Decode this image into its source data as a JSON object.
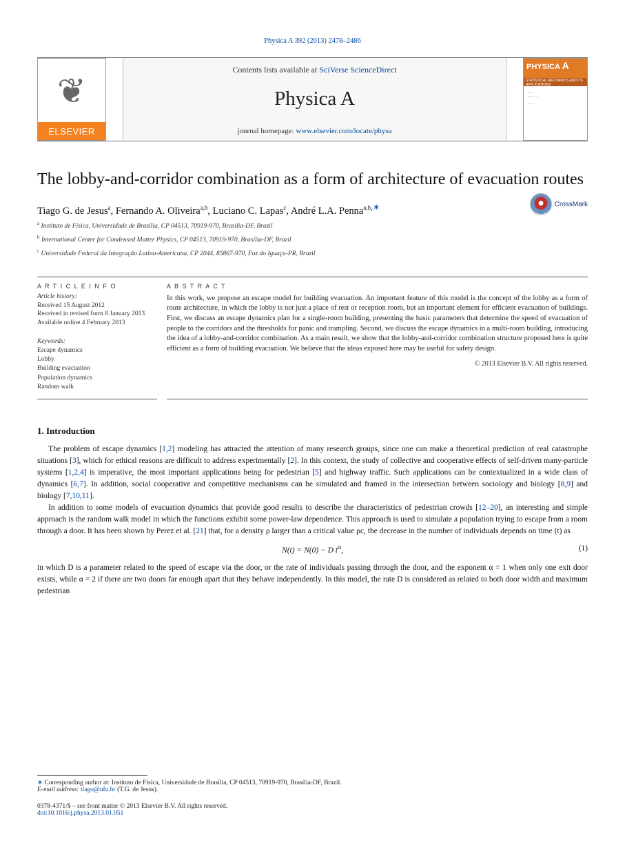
{
  "running_head": "Physica A 392 (2013) 2478–2486",
  "banner": {
    "contents_prefix": "Contents lists available at ",
    "contents_link": "SciVerse ScienceDirect",
    "journal_title": "Physica A",
    "homepage_prefix": "journal homepage: ",
    "homepage_link": "www.elsevier.com/locate/physa",
    "publisher_brand": "ELSEVIER",
    "cover_brand": "PHYSICA",
    "cover_letter": "A",
    "cover_sub": "STATISTICAL MECHANICS AND ITS APPLICATIONS"
  },
  "crossmark_label": "CrossMark",
  "paper_title": "The lobby-and-corridor combination as a form of architecture of evacuation routes",
  "authors_html": "Tiago G. de Jesus|a|, Fernando A. Oliveira|a,b|, Luciano C. Lapas|c|, André L.A. Penna|a,b,*|",
  "authors": [
    {
      "name": "Tiago G. de Jesus",
      "aff": "a"
    },
    {
      "name": "Fernando A. Oliveira",
      "aff": "a,b"
    },
    {
      "name": "Luciano C. Lapas",
      "aff": "c"
    },
    {
      "name": "André L.A. Penna",
      "aff": "a,b",
      "corr": true
    }
  ],
  "affiliations": [
    {
      "sup": "a",
      "text": "Instituto de Física, Universidade de Brasília, CP 04513, 70919-970, Brasília-DF, Brazil"
    },
    {
      "sup": "b",
      "text": "International Center for Condensed Matter Physics, CP 04513, 70919-970, Brasília-DF, Brazil"
    },
    {
      "sup": "c",
      "text": "Universidade Federal da Integração Latino-Americana, CP 2044, 85867-970, Foz do Iguaçu-PR, Brazil"
    }
  ],
  "article_info": {
    "header": "A R T I C L E   I N F O",
    "history": [
      "Article history:",
      "Received 15 August 2012",
      "Received in revised form 8 January 2013",
      "Available online 4 February 2013"
    ],
    "keywords_label": "Keywords:",
    "keywords": [
      "Escape dynamics",
      "Lobby",
      "Building evacuation",
      "Population dynamics",
      "Random walk"
    ]
  },
  "abstract": {
    "header": "A B S T R A C T",
    "text": "In this work, we propose an escape model for building evacuation. An important feature of this model is the concept of the lobby as a form of route architecture, in which the lobby is not just a place of rest or reception room, but an important element for efficient evacuation of buildings. First, we discuss an escape dynamics plan for a single-room building, presenting the basic parameters that determine the speed of evacuation of people to the corridors and the thresholds for panic and trampling. Second, we discuss the escape dynamics in a multi-room building, introducing the idea of a lobby-and-corridor combination. As a main result, we show that the lobby-and-corridor combination structure proposed here is quite efficient as a form of building evacuation. We believe that the ideas exposed here may be useful for safety design.",
    "copyright": "© 2013 Elsevier B.V. All rights reserved."
  },
  "section": {
    "heading": "1. Introduction",
    "paragraphs": [
      "The problem of escape dynamics [1,2] modeling has attracted the attention of many research groups, since one can make a theoretical prediction of real catastrophe situations [3], which for ethical reasons are difficult to address experimentally [2]. In this context, the study of collective and cooperative effects of self-driven many-particle systems [1,2,4] is imperative, the most important applications being for pedestrian [5] and highway traffic. Such applications can be contextualized in a wide class of dynamics [6,7]. In addition, social cooperative and competitive mechanisms can be simulated and framed in the intersection between sociology and biology [8,9] and biology [7,10,11].",
      "In addition to some models of evacuation dynamics that provide good results to describe the characteristics of pedestrian crowds [12–20], an interesting and simple approach is the random walk model in which the functions exhibit some power-law dependence. This approach is used to simulate a population trying to escape from a room through a door. It has been shown by Perez et al. [21] that, for a density ρ larger than a critical value ρc, the decrease in the number of individuals depends on time (t) as",
      "in which D is a parameter related to the speed of escape via the door, or the rate of individuals passing through the door, and the exponent α = 1 when only one exit door exists, while α = 2 if there are two doors far enough apart that they behave independently. In this model, the rate D is considered as related to both door width and maximum pedestrian"
    ],
    "equation": "N(t) = N(0) − D t^{α},",
    "eq_num": "(1)"
  },
  "footer": {
    "corr_label": "Corresponding author at: Instituto de Física, Universidade de Brasília, CP 04513, 70919-970, Brasília-DF, Brazil.",
    "email_label": "E-mail address:",
    "email": "tiago@ufu.br",
    "email_attrib": "(T.G. de Jesus).",
    "issn_line": "0378-4371/$ – see front matter © 2013 Elsevier B.V. All rights reserved.",
    "doi_label": "doi:",
    "doi": "10.1016/j.physa.2013.01.051"
  }
}
